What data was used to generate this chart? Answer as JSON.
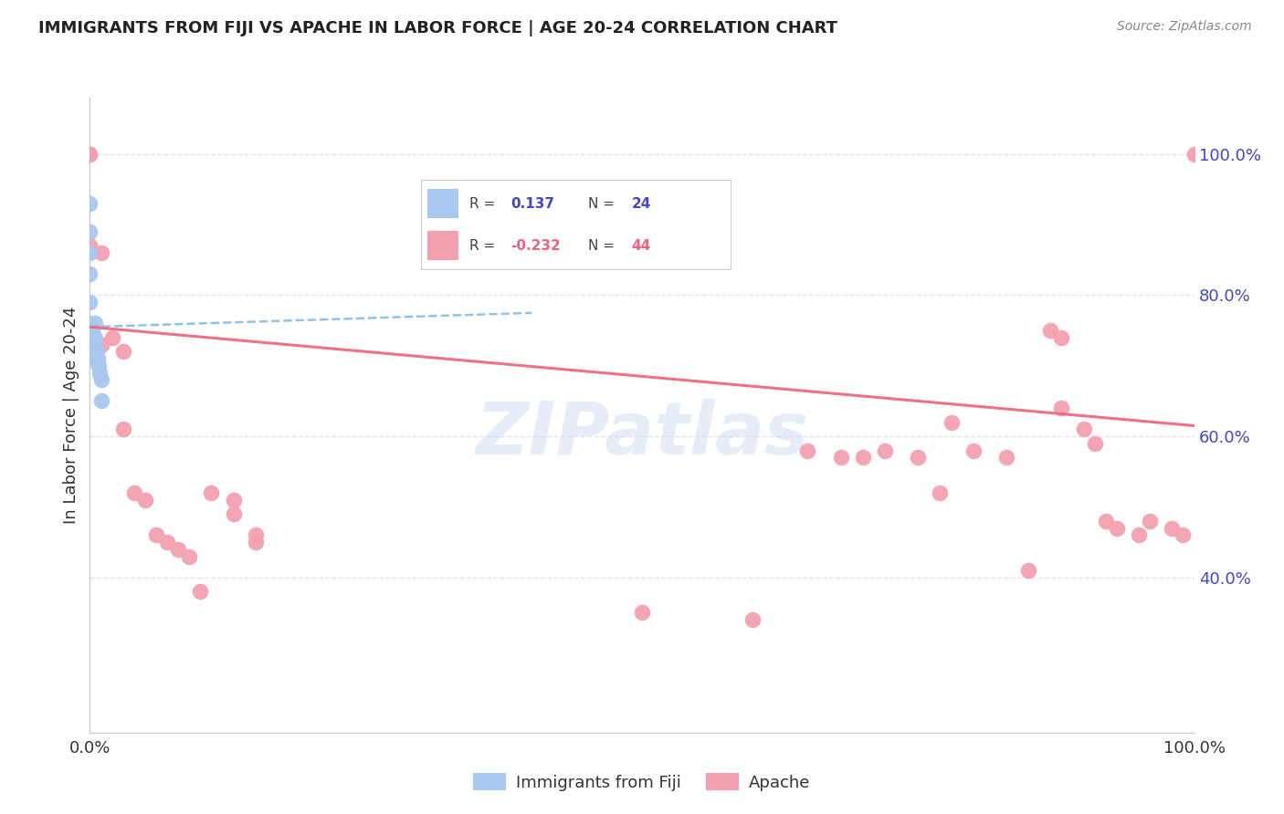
{
  "title": "IMMIGRANTS FROM FIJI VS APACHE IN LABOR FORCE | AGE 20-24 CORRELATION CHART",
  "source": "Source: ZipAtlas.com",
  "ylabel": "In Labor Force | Age 20-24",
  "xlim": [
    0.0,
    1.0
  ],
  "ylim": [
    0.18,
    1.08
  ],
  "fiji_color": "#a8c8f0",
  "apache_color": "#f4a0b0",
  "fiji_R": 0.137,
  "fiji_N": 24,
  "apache_R": -0.232,
  "apache_N": 44,
  "fiji_x": [
    0.0,
    0.0,
    0.0,
    0.0,
    0.0,
    0.0,
    0.0,
    0.0,
    0.0,
    0.0,
    0.0,
    0.0,
    0.0,
    0.002,
    0.003,
    0.004,
    0.005,
    0.005,
    0.006,
    0.007,
    0.008,
    0.009,
    0.01,
    0.01
  ],
  "fiji_y": [
    0.93,
    0.89,
    0.86,
    0.83,
    0.79,
    0.76,
    0.76,
    0.75,
    0.74,
    0.73,
    0.72,
    0.72,
    0.71,
    0.75,
    0.74,
    0.73,
    0.76,
    0.74,
    0.72,
    0.71,
    0.7,
    0.69,
    0.68,
    0.65
  ],
  "apache_x": [
    0.0,
    0.0,
    0.0,
    0.01,
    0.01,
    0.02,
    0.03,
    0.03,
    0.04,
    0.05,
    0.06,
    0.07,
    0.08,
    0.09,
    0.1,
    0.11,
    0.13,
    0.13,
    0.15,
    0.15,
    0.5,
    0.6,
    0.65,
    0.68,
    0.7,
    0.72,
    0.75,
    0.77,
    0.78,
    0.8,
    0.83,
    0.85,
    0.87,
    0.88,
    0.88,
    0.9,
    0.91,
    0.92,
    0.93,
    0.95,
    0.96,
    0.98,
    0.99,
    1.0
  ],
  "apache_y": [
    1.0,
    1.0,
    0.87,
    0.86,
    0.73,
    0.74,
    0.72,
    0.61,
    0.52,
    0.51,
    0.46,
    0.45,
    0.44,
    0.43,
    0.38,
    0.52,
    0.51,
    0.49,
    0.46,
    0.45,
    0.35,
    0.34,
    0.58,
    0.57,
    0.57,
    0.58,
    0.57,
    0.52,
    0.62,
    0.58,
    0.57,
    0.41,
    0.75,
    0.74,
    0.64,
    0.61,
    0.59,
    0.48,
    0.47,
    0.46,
    0.48,
    0.47,
    0.46,
    1.0
  ],
  "fiji_trendline_x": [
    0.0,
    0.4
  ],
  "fiji_trendline_start_y": 0.755,
  "fiji_trendline_slope": 0.05,
  "apache_trendline_start_y": 0.755,
  "apache_trendline_slope": -0.14,
  "watermark": "ZIPatlas",
  "watermark_color": "#c8d8f0",
  "background_color": "#ffffff",
  "grid_color": "#e8e0f0",
  "axis_color": "#cccccc",
  "title_color": "#222222",
  "source_color": "#888888",
  "ylabel_color": "#333333",
  "tick_color": "#333333",
  "right_tick_color": "#4444cc",
  "legend_fiji_r_color": "#4444cc",
  "legend_apache_r_color": "#f06080",
  "yticks_right": [
    0.4,
    0.6,
    0.8,
    1.0
  ],
  "ytick_labels_right": [
    "40.0%",
    "60.0%",
    "80.0%",
    "100.0%"
  ],
  "xticks": [
    0.0,
    1.0
  ],
  "xtick_labels": [
    "0.0%",
    "100.0%"
  ]
}
